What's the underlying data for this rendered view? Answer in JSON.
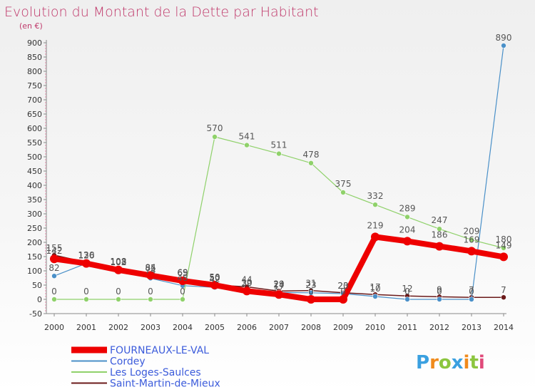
{
  "chart_data": {
    "type": "line",
    "title": "Evolution du Montant de la Dette par Habitant",
    "subtitle": "(en €)",
    "xlabel": "",
    "ylabel": "",
    "x": [
      "2000",
      "2001",
      "2002",
      "2003",
      "2004",
      "2005",
      "2006",
      "2007",
      "2008",
      "2009",
      "2010",
      "2011",
      "2012",
      "2013",
      "2014"
    ],
    "ylim": [
      -50,
      900
    ],
    "yticks": [
      -50,
      0,
      50,
      100,
      150,
      200,
      250,
      300,
      350,
      400,
      450,
      500,
      550,
      600,
      650,
      700,
      750,
      800,
      850,
      900
    ],
    "grid": false,
    "legend_position": "bottom-left",
    "series": [
      {
        "name": "Saint-Martin-de-Mieux",
        "color": "#6b1a1a",
        "width": 1.5,
        "marker": 3.5,
        "values": [
          155,
          130,
          108,
          85,
          69,
          50,
          44,
          29,
          31,
          23,
          17,
          12,
          9,
          7,
          7
        ],
        "labels": [
          "155",
          "130",
          "108",
          "85",
          "69",
          "50",
          "44",
          "29",
          "31",
          "23",
          "17",
          "12",
          "9",
          "7",
          "7"
        ],
        "label_dy": [
          -6,
          -6,
          -6,
          -6,
          -6,
          -6,
          -6,
          -6,
          -6,
          -6,
          -6,
          -6,
          -6,
          -6,
          -6
        ]
      },
      {
        "name": "Cordey",
        "color": "#4a90c8",
        "width": 1.2,
        "marker": 3.5,
        "values": [
          82,
          126,
          102,
          74,
          48,
          42,
          30,
          24,
          23,
          20,
          10,
          0,
          0,
          0,
          890
        ],
        "labels": [
          "82",
          "126",
          "102",
          "74",
          "48",
          "42",
          "30",
          "24",
          "23",
          "20",
          "10",
          "0",
          "0",
          "0",
          "890"
        ],
        "label_dy": [
          -7,
          -7,
          -7,
          -7,
          -7,
          -7,
          -7,
          -7,
          -7,
          -7,
          -7,
          -7,
          -7,
          -7,
          -7
        ]
      },
      {
        "name": "Les Loges-Saulces",
        "color": "#8fd16a",
        "width": 1.2,
        "marker": 3.5,
        "values": [
          0,
          0,
          0,
          0,
          0,
          570,
          541,
          511,
          478,
          375,
          332,
          289,
          247,
          209,
          180
        ],
        "labels": [
          "0",
          "0",
          "0",
          "0",
          "0",
          "570",
          "541",
          "511",
          "478",
          "375",
          "332",
          "289",
          "247",
          "209",
          "180"
        ],
        "label_dy": [
          -7,
          -7,
          -7,
          -7,
          -7,
          -8,
          -8,
          -8,
          -8,
          -8,
          -8,
          -8,
          -8,
          -8,
          -8
        ]
      },
      {
        "name": "FOURNEAUX-LE-VAL",
        "color": "#ee0000",
        "width": 8,
        "marker": 6,
        "values": [
          142,
          126,
          103,
          84,
          65,
          50,
          29,
          17,
          0,
          0,
          219,
          204,
          186,
          169,
          149
        ],
        "labels": [
          "142",
          "126",
          "103",
          "84",
          "65",
          "50",
          "29",
          "17",
          "0",
          "0",
          "219",
          "204",
          "186",
          "169",
          "149"
        ],
        "label_dy": [
          -7,
          -7,
          -7,
          -7,
          -7,
          -7,
          -7,
          -7,
          -7,
          -7,
          -12,
          -12,
          -12,
          -12,
          -12
        ]
      }
    ]
  },
  "legend": {
    "items": [
      {
        "label": "FOURNEAUX-LE-VAL",
        "color": "#ee0000",
        "width": 9
      },
      {
        "label": "Cordey",
        "color": "#4a90c8",
        "width": 2
      },
      {
        "label": "Les Loges-Saulces",
        "color": "#8fd16a",
        "width": 2
      },
      {
        "label": "Saint-Martin-de-Mieux",
        "color": "#6b1a1a",
        "width": 2
      }
    ]
  },
  "logo": {
    "letters": [
      "P",
      "r",
      "o",
      "x",
      "i",
      "t",
      "i"
    ],
    "colors": [
      "#3aa0e0",
      "#f08a1c",
      "#8cc63f",
      "#3aa0e0",
      "#f08a1c",
      "#8cc63f",
      "#e04a7a"
    ]
  }
}
